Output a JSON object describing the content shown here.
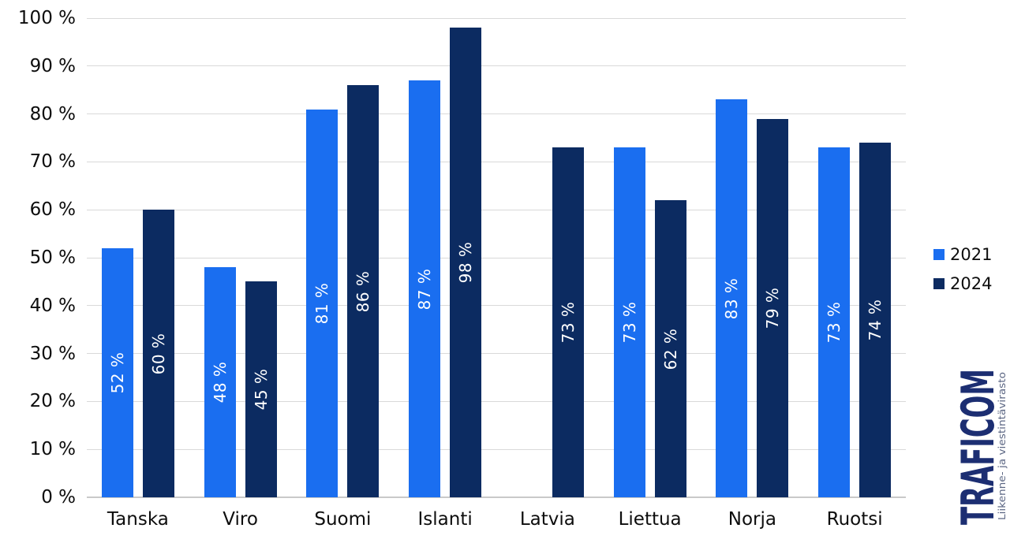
{
  "chart_data": {
    "type": "bar",
    "title": "",
    "xlabel": "",
    "ylabel": "",
    "categories": [
      "Tanska",
      "Viro",
      "Suomi",
      "Islanti",
      "Latvia",
      "Liettua",
      "Norja",
      "Ruotsi"
    ],
    "series": [
      {
        "name": "2021",
        "color": "#1a6ef0",
        "values": [
          52,
          48,
          81,
          87,
          null,
          73,
          83,
          73
        ],
        "value_labels": [
          "52 %",
          "48 %",
          "81 %",
          "87 %",
          "",
          "73 %",
          "83 %",
          "73 %"
        ]
      },
      {
        "name": "2024",
        "color": "#0c2b61",
        "values": [
          60,
          45,
          86,
          98,
          73,
          62,
          79,
          74
        ],
        "value_labels": [
          "60 %",
          "45 %",
          "86 %",
          "98 %",
          "73 %",
          "62 %",
          "79 %",
          "74 %"
        ]
      }
    ],
    "ylim": [
      0,
      100
    ],
    "ytick_step": 10,
    "yticks": [
      "0 %",
      "10 %",
      "20 %",
      "30 %",
      "40 %",
      "50 %",
      "60 %",
      "70 %",
      "80 %",
      "90 %",
      "100 %"
    ],
    "grid": true,
    "legend_position": "right",
    "value_label_color": "#ffffff",
    "value_label_rotation": -90
  },
  "legend": {
    "items": [
      {
        "label": "2021",
        "color": "#1a6ef0"
      },
      {
        "label": "2024",
        "color": "#0c2b61"
      }
    ]
  },
  "logo": {
    "wordmark": "TRAFICOM",
    "tagline": "Liikenne- ja viestintävirasto",
    "wordmark_color": "#1c2e72",
    "tagline_color": "#5c6784"
  },
  "colors": {
    "gridline": "#d9d9d9",
    "axis_line": "#c9c9c9",
    "tick_text": "#0d0d0d"
  }
}
